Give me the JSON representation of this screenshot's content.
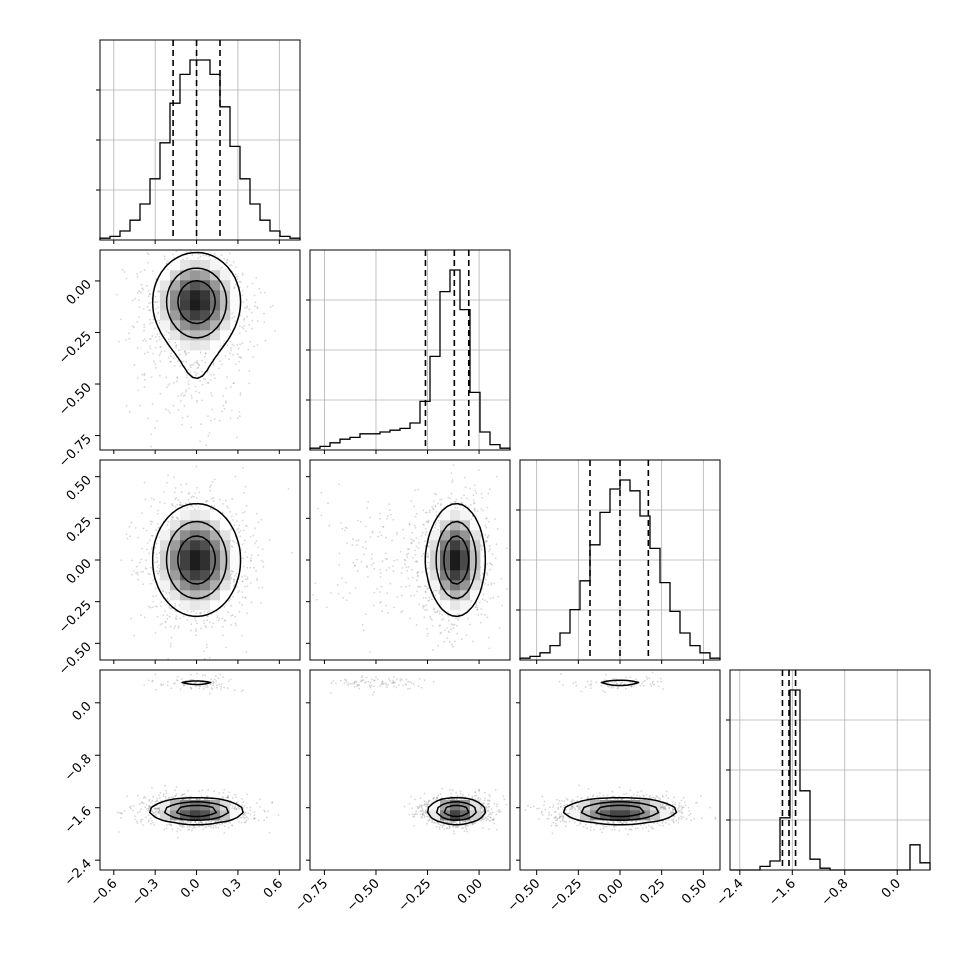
{
  "chart_data": {
    "type": "corner",
    "parameters": 4,
    "axes": [
      {
        "range": [
          -0.7,
          0.75
        ],
        "ticks": [
          -0.6,
          -0.3,
          0.0,
          0.3,
          0.6
        ],
        "tick_labels": [
          "−0.6",
          "−0.3",
          "0.0",
          "0.3",
          "0.6"
        ]
      },
      {
        "range": [
          -0.82,
          0.15
        ],
        "ticks": [
          -0.75,
          -0.5,
          -0.25,
          0.0
        ],
        "tick_labels": [
          "−0.75",
          "−0.50",
          "−0.25",
          "0.00"
        ]
      },
      {
        "range": [
          -0.6,
          0.6
        ],
        "ticks": [
          -0.5,
          -0.25,
          0.0,
          0.25,
          0.5
        ],
        "tick_labels": [
          "−0.50",
          "−0.25",
          "0.00",
          "0.25",
          "0.50"
        ]
      },
      {
        "range": [
          -2.55,
          0.5
        ],
        "ticks": [
          -2.4,
          -1.6,
          -0.8,
          0.0
        ],
        "tick_labels": [
          "−2.4",
          "−1.6",
          "−0.8",
          "0.0"
        ]
      }
    ],
    "marginals": [
      {
        "quantiles": [
          -0.17,
          0.0,
          0.17
        ],
        "hist": [
          0.01,
          0.02,
          0.05,
          0.11,
          0.2,
          0.34,
          0.54,
          0.76,
          0.92,
          1.0,
          1.0,
          0.92,
          0.74,
          0.52,
          0.34,
          0.2,
          0.11,
          0.05,
          0.02,
          0.01
        ]
      },
      {
        "quantiles": [
          -0.26,
          -0.12,
          -0.05
        ],
        "hist": [
          0.01,
          0.02,
          0.04,
          0.06,
          0.07,
          0.09,
          0.09,
          0.1,
          0.11,
          0.12,
          0.15,
          0.27,
          0.52,
          0.88,
          1.0,
          0.78,
          0.32,
          0.1,
          0.03,
          0.01
        ]
      },
      {
        "quantiles": [
          -0.18,
          0.0,
          0.17
        ],
        "hist": [
          0.01,
          0.02,
          0.04,
          0.08,
          0.15,
          0.28,
          0.44,
          0.64,
          0.82,
          0.95,
          1.0,
          0.94,
          0.8,
          0.62,
          0.43,
          0.27,
          0.15,
          0.08,
          0.04,
          0.01
        ]
      },
      {
        "quantiles": [
          -1.75,
          -1.65,
          -1.55
        ],
        "hist": [
          0.0,
          0.0,
          0.0,
          0.02,
          0.05,
          0.29,
          1.0,
          0.44,
          0.06,
          0.01,
          0.0,
          0.0,
          0.0,
          0.0,
          0.0,
          0.0,
          0.0,
          0.0,
          0.14,
          0.04
        ]
      }
    ],
    "joint": [
      {
        "row": 1,
        "col": 0,
        "modes": [
          {
            "cx": 0.0,
            "cy": -0.1,
            "sx": 0.16,
            "sy": 0.12,
            "w": 0.85
          },
          {
            "cx": 0.0,
            "cy": -0.45,
            "sx": 0.18,
            "sy": 0.14,
            "w": 0.15
          }
        ]
      },
      {
        "row": 2,
        "col": 0,
        "modes": [
          {
            "cx": 0.0,
            "cy": 0.0,
            "sx": 0.16,
            "sy": 0.17,
            "w": 1.0
          }
        ]
      },
      {
        "row": 2,
        "col": 1,
        "modes": [
          {
            "cx": -0.11,
            "cy": 0.0,
            "sx": 0.07,
            "sy": 0.17,
            "w": 0.85
          },
          {
            "cx": -0.45,
            "cy": 0.0,
            "sx": 0.15,
            "sy": 0.17,
            "w": 0.15
          }
        ]
      },
      {
        "row": 3,
        "col": 0,
        "modes": [
          {
            "cx": 0.0,
            "cy": -1.65,
            "sx": 0.17,
            "sy": 0.1,
            "w": 0.93
          },
          {
            "cx": 0.0,
            "cy": 0.3,
            "sx": 0.14,
            "sy": 0.05,
            "w": 0.07
          }
        ]
      },
      {
        "row": 3,
        "col": 1,
        "modes": [
          {
            "cx": -0.11,
            "cy": -1.65,
            "sx": 0.07,
            "sy": 0.1,
            "w": 0.93
          },
          {
            "cx": -0.5,
            "cy": 0.3,
            "sx": 0.1,
            "sy": 0.05,
            "w": 0.07
          }
        ]
      },
      {
        "row": 3,
        "col": 2,
        "modes": [
          {
            "cx": 0.0,
            "cy": -1.65,
            "sx": 0.17,
            "sy": 0.1,
            "w": 0.93
          },
          {
            "cx": 0.0,
            "cy": 0.3,
            "sx": 0.12,
            "sy": 0.05,
            "w": 0.07
          }
        ]
      }
    ],
    "grid": true,
    "colors": {
      "line": "#000000",
      "grid": "#b0b0b0",
      "points": "#8c8c8c"
    }
  }
}
